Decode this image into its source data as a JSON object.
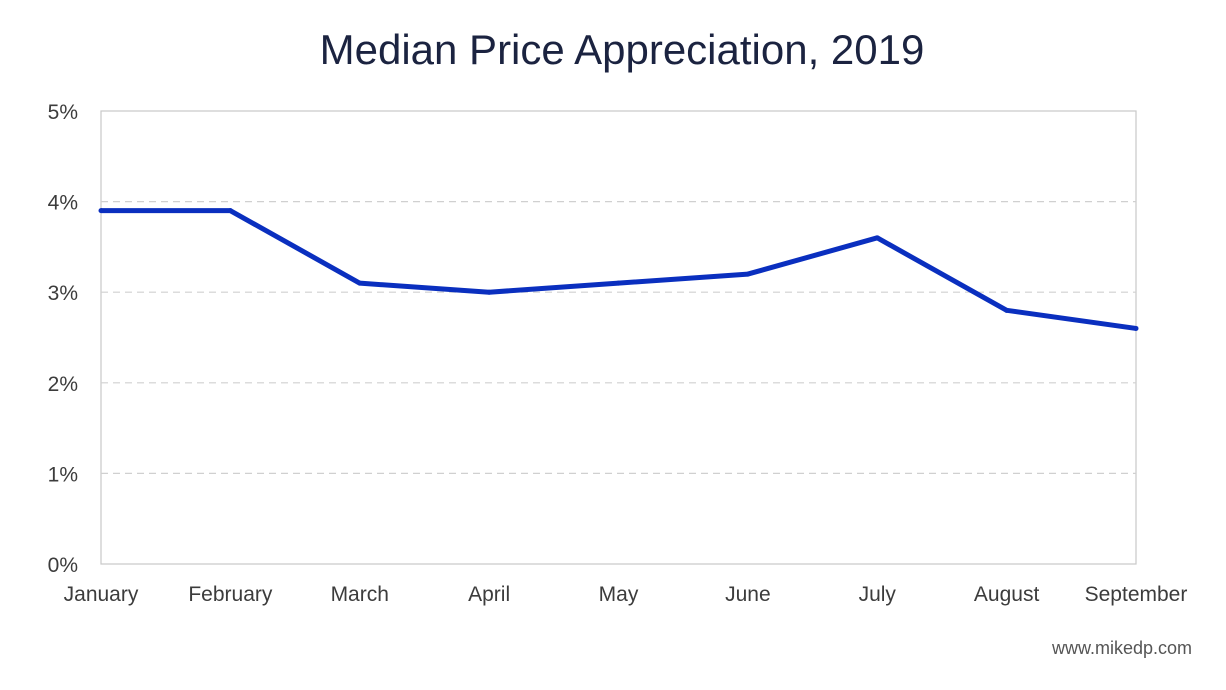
{
  "chart_data": {
    "type": "line",
    "title": "Median Price Appreciation, 2019",
    "xlabel": "",
    "ylabel": "",
    "categories": [
      "January",
      "February",
      "March",
      "April",
      "May",
      "June",
      "July",
      "August",
      "September"
    ],
    "series": [
      {
        "name": "Median Price Appreciation",
        "values": [
          3.9,
          3.9,
          3.1,
          3.0,
          3.1,
          3.2,
          3.6,
          2.8,
          2.6
        ],
        "color": "#0a2fbf"
      }
    ],
    "ylim": [
      0,
      5
    ],
    "yticks": [
      0,
      1,
      2,
      3,
      4,
      5
    ],
    "ytick_labels": [
      "0%",
      "1%",
      "2%",
      "3%",
      "4%",
      "5%"
    ],
    "grid": true,
    "legend": "none"
  },
  "footer": {
    "source": "www.mikedp.com"
  },
  "colors": {
    "line": "#0a2fbf",
    "grid": "#d0d0d0",
    "axis": "#c8c8c8",
    "title": "#1b2340"
  }
}
